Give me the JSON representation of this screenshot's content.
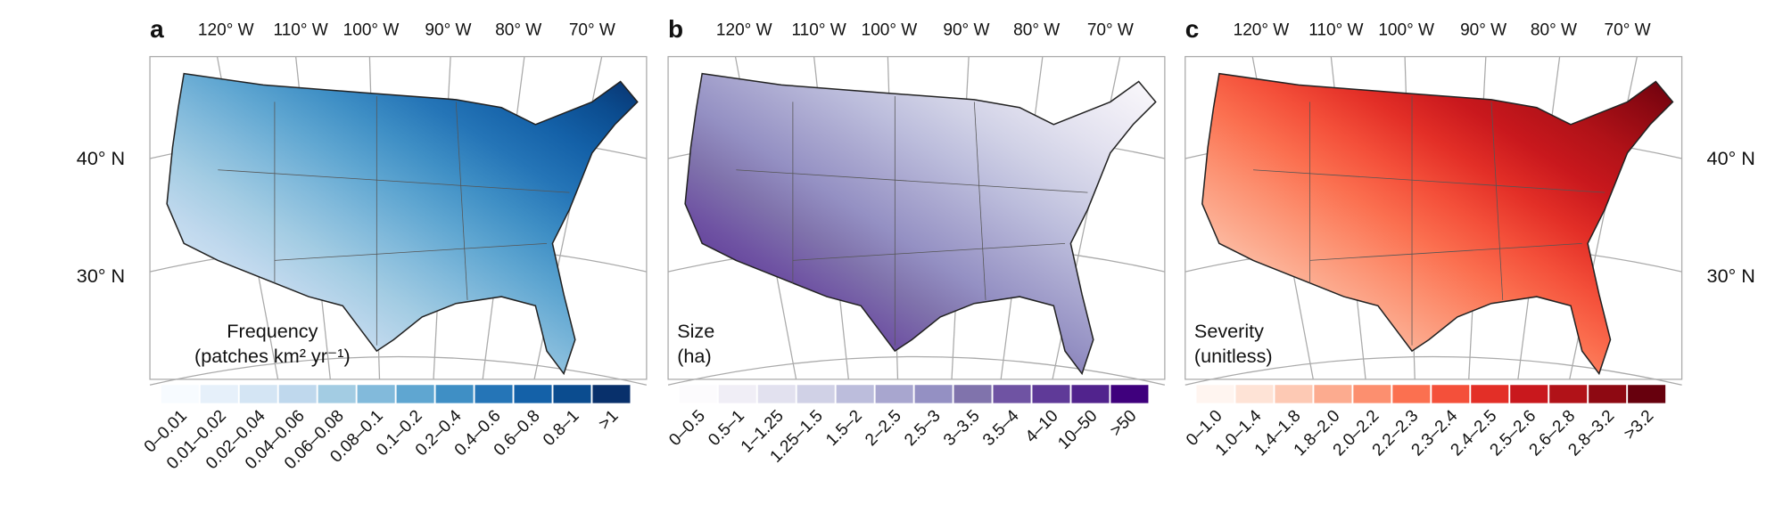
{
  "panels": [
    {
      "label": "a",
      "lon_labels": [
        "120° W",
        "110° W",
        "100° W",
        "90° W",
        "80° W",
        "70° W"
      ],
      "lat_labels": [
        "40° N",
        "30° N"
      ],
      "lat_side": "left",
      "legend_title": [
        "Frequency",
        "(patches km² yr⁻¹)"
      ],
      "legend": {
        "labels": [
          "0–0.01",
          "0.01–0.02",
          "0.02–0.04",
          "0.04–0.06",
          "0.06–0.08",
          "0.08–0.1",
          "0.1–0.2",
          "0.2–0.4",
          "0.4–0.6",
          "0.6–0.8",
          "0.8–1",
          ">1"
        ],
        "colors": [
          "#f7fbff",
          "#e6f0fa",
          "#d4e5f4",
          "#bfd8ed",
          "#a3cce3",
          "#82badb",
          "#5fa6d1",
          "#3f8fc5",
          "#2575b7",
          "#1461a8",
          "#0b4c8f",
          "#08306b"
        ]
      }
    },
    {
      "label": "b",
      "lon_labels": [
        "120° W",
        "110° W",
        "100° W",
        "90° W",
        "80° W",
        "70° W"
      ],
      "lat_labels": [],
      "lat_side": "none",
      "legend_title": [
        "Size",
        "(ha)"
      ],
      "legend": {
        "labels": [
          "0–0.5",
          "0.5–1",
          "1–1.25",
          "1.25–1.5",
          "1.5–2",
          "2–2.5",
          "2.5–3",
          "3–3.5",
          "3.5–4",
          "4–10",
          "10–50",
          ">50"
        ],
        "colors": [
          "#fcfbfd",
          "#f0eef6",
          "#e2e1ef",
          "#d0d1e6",
          "#bcbddc",
          "#a8a6cf",
          "#9490c3",
          "#8073ac",
          "#6f53a3",
          "#5f3a98",
          "#51238d",
          "#3f007d"
        ]
      }
    },
    {
      "label": "c",
      "lon_labels": [
        "120° W",
        "110° W",
        "100° W",
        "90° W",
        "80° W",
        "70° W"
      ],
      "lat_labels": [
        "40° N",
        "30° N"
      ],
      "lat_side": "right",
      "legend_title": [
        "Severity",
        "(unitless)"
      ],
      "legend": {
        "labels": [
          "0–1.0",
          "1.0–1.4",
          "1.4–1.8",
          "1.8–2.0",
          "2.0–2.2",
          "2.2–2.3",
          "2.3–2.4",
          "2.4–2.5",
          "2.5–2.6",
          "2.6–2.8",
          "2.8–3.2",
          ">3.2"
        ],
        "colors": [
          "#fff5f0",
          "#fee3d6",
          "#fdc9b4",
          "#fcab8f",
          "#fc8f6f",
          "#fb7050",
          "#f4503a",
          "#e32f27",
          "#c9181d",
          "#b11218",
          "#8e0912",
          "#67000d"
        ]
      }
    }
  ]
}
